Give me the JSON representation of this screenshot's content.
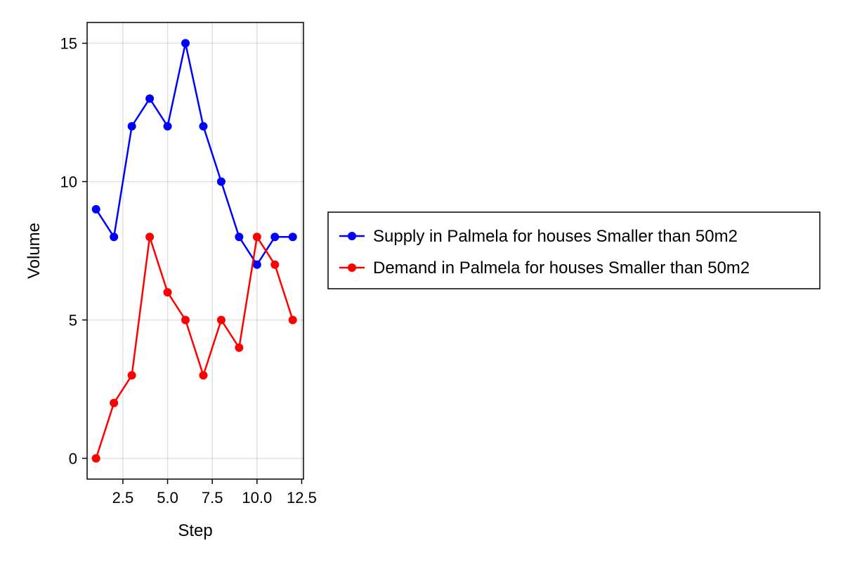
{
  "chart_data": {
    "type": "line",
    "title": "",
    "xlabel": "Step",
    "ylabel": "Volume",
    "xlim": [
      0.5,
      12.6
    ],
    "ylim": [
      -0.75,
      15.75
    ],
    "x_ticks": [
      2.5,
      5.0,
      7.5,
      10.0,
      12.5
    ],
    "x_tick_labels": [
      "2.5",
      "5.0",
      "7.5",
      "10.0",
      "12.5"
    ],
    "y_ticks": [
      0,
      5,
      10,
      15
    ],
    "y_tick_labels": [
      "0",
      "5",
      "10",
      "15"
    ],
    "grid": true,
    "legend_position": "right",
    "x": [
      1,
      2,
      3,
      4,
      5,
      6,
      7,
      8,
      9,
      10,
      11,
      12
    ],
    "series": [
      {
        "name": "Supply in Palmela for houses Smaller than 50m2",
        "color": "#0000ff",
        "values": [
          9,
          8,
          12,
          13,
          12,
          15,
          12,
          10,
          8,
          7,
          8,
          8
        ]
      },
      {
        "name": "Demand in Palmela for houses Smaller than 50m2",
        "color": "#ff0000",
        "values": [
          0,
          2,
          3,
          8,
          6,
          5,
          3,
          5,
          4,
          8,
          7,
          5
        ]
      }
    ]
  }
}
